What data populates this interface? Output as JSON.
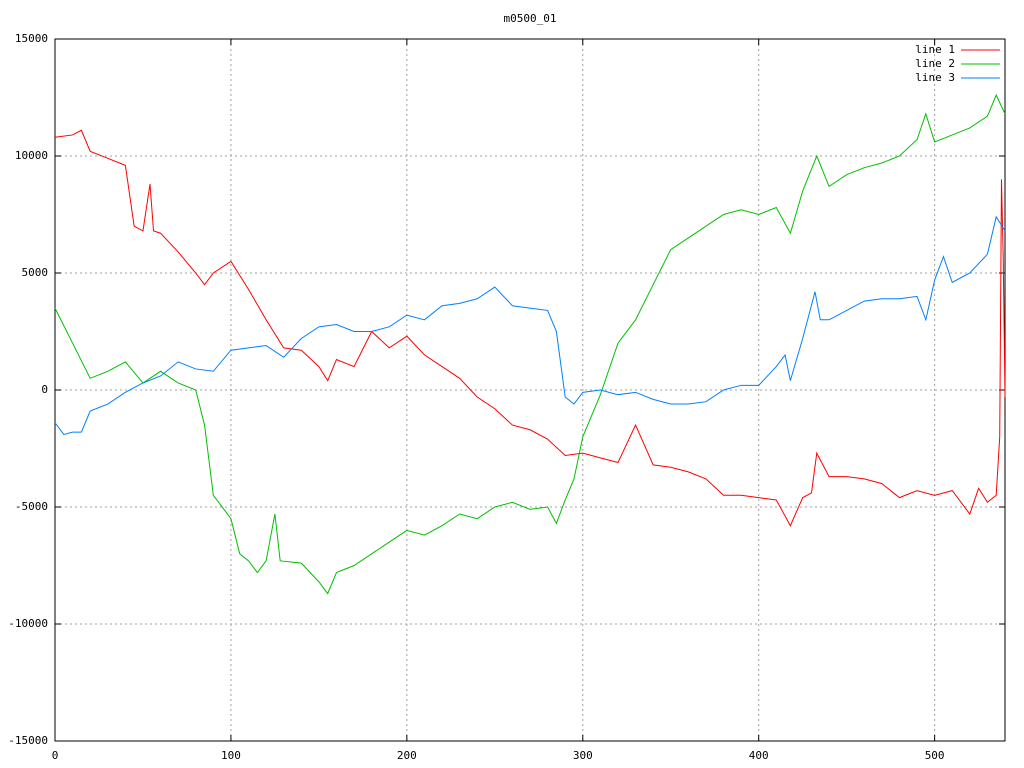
{
  "chart_data": {
    "type": "line",
    "title": "m0500_01",
    "xlim": [
      0,
      540
    ],
    "ylim": [
      -15000,
      15000
    ],
    "xticks": [
      0,
      100,
      200,
      300,
      400,
      500
    ],
    "yticks": [
      -15000,
      -10000,
      -5000,
      0,
      5000,
      10000,
      15000
    ],
    "grid": true,
    "legend": "top-right",
    "series": [
      {
        "name": "line 1",
        "color": "#ff0000",
        "x": [
          0,
          10,
          15,
          20,
          30,
          40,
          45,
          50,
          54,
          56,
          60,
          70,
          80,
          85,
          90,
          100,
          110,
          120,
          130,
          140,
          150,
          155,
          160,
          170,
          180,
          190,
          200,
          210,
          220,
          230,
          240,
          250,
          260,
          270,
          280,
          290,
          300,
          310,
          320,
          330,
          340,
          350,
          360,
          370,
          380,
          390,
          400,
          410,
          418,
          425,
          430,
          433,
          440,
          450,
          460,
          470,
          480,
          490,
          500,
          510,
          520,
          525,
          530,
          535,
          537,
          538,
          539,
          540
        ],
        "values": [
          10800,
          10900,
          11100,
          10200,
          9900,
          9600,
          7000,
          6800,
          8800,
          6800,
          6700,
          5900,
          5000,
          4500,
          5000,
          5500,
          4300,
          3000,
          1800,
          1700,
          1000,
          400,
          1300,
          1000,
          2500,
          1800,
          2300,
          1500,
          1000,
          500,
          -300,
          -800,
          -1500,
          -1700,
          -2100,
          -2800,
          -2700,
          -2900,
          -3100,
          -1500,
          -3200,
          -3300,
          -3500,
          -3800,
          -4500,
          -4500,
          -4600,
          -4700,
          -5800,
          -4600,
          -4400,
          -2700,
          -3700,
          -3700,
          -3800,
          -4000,
          -4600,
          -4300,
          -4500,
          -4300,
          -5300,
          -4200,
          -4800,
          -4500,
          -2000,
          9000,
          5600,
          -300
        ]
      },
      {
        "name": "line 2",
        "color": "#00c000",
        "x": [
          0,
          10,
          20,
          30,
          40,
          50,
          60,
          70,
          80,
          85,
          90,
          100,
          105,
          110,
          115,
          120,
          125,
          128,
          140,
          150,
          155,
          160,
          170,
          180,
          190,
          200,
          210,
          220,
          230,
          240,
          250,
          260,
          270,
          280,
          285,
          290,
          295,
          300,
          310,
          320,
          330,
          340,
          350,
          360,
          370,
          380,
          390,
          400,
          410,
          418,
          425,
          433,
          440,
          450,
          460,
          470,
          480,
          490,
          495,
          500,
          510,
          520,
          530,
          535,
          540
        ],
        "values": [
          3500,
          2000,
          500,
          800,
          1200,
          300,
          800,
          300,
          0,
          -1500,
          -4500,
          -5500,
          -7000,
          -7300,
          -7800,
          -7300,
          -5300,
          -7300,
          -7400,
          -8200,
          -8700,
          -7800,
          -7500,
          -7000,
          -6500,
          -6000,
          -6200,
          -5800,
          -5300,
          -5500,
          -5000,
          -4800,
          -5100,
          -5000,
          -5700,
          -4700,
          -3800,
          -2000,
          -200,
          2000,
          3000,
          4500,
          6000,
          6500,
          7000,
          7500,
          7700,
          7500,
          7800,
          6700,
          8500,
          10000,
          8700,
          9200,
          9500,
          9700,
          10000,
          10700,
          11800,
          10600,
          10900,
          11200,
          11700,
          12600,
          11800
        ]
      },
      {
        "name": "line 3",
        "color": "#0080ff",
        "x": [
          0,
          5,
          10,
          15,
          20,
          30,
          40,
          50,
          60,
          70,
          80,
          90,
          100,
          110,
          120,
          130,
          140,
          150,
          160,
          170,
          180,
          190,
          200,
          210,
          220,
          230,
          240,
          250,
          260,
          270,
          280,
          285,
          290,
          295,
          300,
          310,
          320,
          330,
          340,
          350,
          360,
          370,
          380,
          390,
          400,
          410,
          415,
          418,
          425,
          432,
          435,
          440,
          450,
          460,
          470,
          480,
          490,
          495,
          500,
          505,
          510,
          520,
          530,
          535,
          540
        ],
        "values": [
          -1400,
          -1900,
          -1800,
          -1800,
          -900,
          -600,
          -100,
          300,
          600,
          1200,
          900,
          800,
          1700,
          1800,
          1900,
          1400,
          2200,
          2700,
          2800,
          2500,
          2500,
          2700,
          3200,
          3000,
          3600,
          3700,
          3900,
          4400,
          3600,
          3500,
          3400,
          2500,
          -300,
          -600,
          -100,
          0,
          -200,
          -100,
          -400,
          -600,
          -600,
          -500,
          0,
          200,
          200,
          1000,
          1500,
          400,
          2200,
          4200,
          3000,
          3000,
          3400,
          3800,
          3900,
          3900,
          4000,
          3000,
          4700,
          5700,
          4600,
          5000,
          5800,
          7400,
          6800
        ]
      }
    ]
  }
}
